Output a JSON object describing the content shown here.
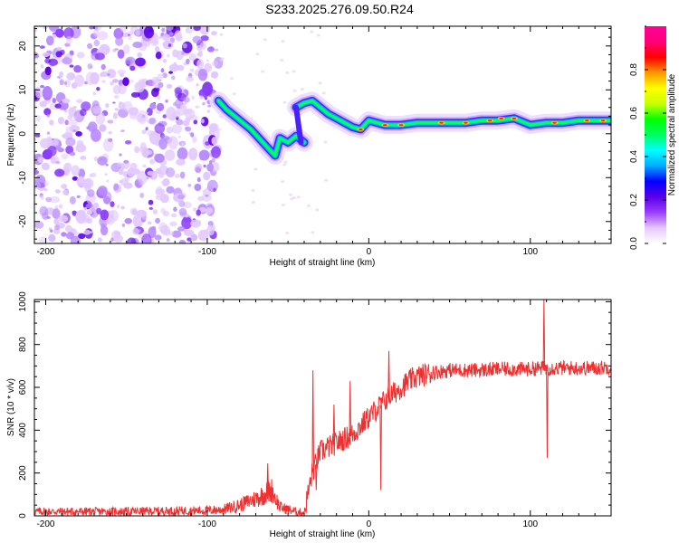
{
  "title": "S233.2025.276.09.50.R24",
  "chart_data": [
    {
      "type": "heatmap",
      "name": "spectrogram",
      "xlabel": "Height of straight line (km)",
      "ylabel": "Frequency (Hz)",
      "xlim": [
        -207,
        150
      ],
      "ylim": [
        -25,
        24.5
      ],
      "xticks": [
        -200,
        -100,
        0,
        100
      ],
      "yticks": [
        -20,
        -10,
        0,
        10,
        20
      ],
      "colorbar": {
        "label": "Normalized spectral amplitude",
        "range": [
          0,
          1
        ],
        "ticks": [
          "0.0",
          "0.2",
          "0.4",
          "0.6",
          "0.8"
        ],
        "colors": [
          "#ffffff",
          "#e6c8ff",
          "#9a3cff",
          "#5a00e6",
          "#0000ff",
          "#00aaff",
          "#00ffff",
          "#00ff60",
          "#00ff00",
          "#c8ff00",
          "#ffff00",
          "#ff9600",
          "#ff0000",
          "#ff0078",
          "#ff0096"
        ]
      },
      "noise_region_x": [
        -207,
        -93
      ],
      "signal_track": [
        {
          "x": -93,
          "f": 7.5
        },
        {
          "x": -88,
          "f": 5.5
        },
        {
          "x": -83,
          "f": 4
        },
        {
          "x": -78,
          "f": 2.5
        },
        {
          "x": -73,
          "f": 1
        },
        {
          "x": -68,
          "f": -1
        },
        {
          "x": -63,
          "f": -3
        },
        {
          "x": -58,
          "f": -5
        },
        {
          "x": -55,
          "f": -1
        },
        {
          "x": -50,
          "f": -2
        },
        {
          "x": -45,
          "f": -0.5
        },
        {
          "x": -40,
          "f": -2
        },
        {
          "x": -45,
          "f": 6
        },
        {
          "x": -40,
          "f": 7
        },
        {
          "x": -35,
          "f": 7.5
        },
        {
          "x": -30,
          "f": 6
        },
        {
          "x": -25,
          "f": 4.5
        },
        {
          "x": -20,
          "f": 3.5
        },
        {
          "x": -15,
          "f": 2.5
        },
        {
          "x": -10,
          "f": 1.5
        },
        {
          "x": -5,
          "f": 1
        },
        {
          "x": 0,
          "f": 3
        },
        {
          "x": 10,
          "f": 2
        },
        {
          "x": 20,
          "f": 2
        },
        {
          "x": 30,
          "f": 2.5
        },
        {
          "x": 40,
          "f": 2.5
        },
        {
          "x": 50,
          "f": 2.5
        },
        {
          "x": 60,
          "f": 2.5
        },
        {
          "x": 70,
          "f": 3
        },
        {
          "x": 80,
          "f": 3
        },
        {
          "x": 90,
          "f": 3.5
        },
        {
          "x": 100,
          "f": 2
        },
        {
          "x": 110,
          "f": 2.5
        },
        {
          "x": 120,
          "f": 2.5
        },
        {
          "x": 130,
          "f": 3
        },
        {
          "x": 140,
          "f": 3
        },
        {
          "x": 150,
          "f": 3
        }
      ]
    },
    {
      "type": "line",
      "name": "snr",
      "xlabel": "Height of straight line (km)",
      "ylabel": "SNR (10 * v/v)",
      "xlim": [
        -207,
        150
      ],
      "ylim": [
        0,
        1010
      ],
      "xticks": [
        -200,
        -100,
        0,
        100
      ],
      "yticks": [
        0,
        200,
        400,
        600,
        800,
        1000
      ],
      "color": "#ee3030",
      "series": [
        {
          "name": "SNR",
          "x": [
            -207,
            -150,
            -100,
            -90,
            -80,
            -70,
            -60,
            -55,
            -45,
            -40,
            -35,
            -30,
            -25,
            -20,
            -15,
            -10,
            -5,
            0,
            5,
            10,
            15,
            20,
            25,
            30,
            40,
            50,
            60,
            70,
            80,
            90,
            100,
            105,
            110,
            115,
            120,
            130,
            140,
            150
          ],
          "y": [
            20,
            20,
            25,
            30,
            50,
            80,
            120,
            40,
            20,
            15,
            200,
            300,
            320,
            340,
            360,
            380,
            420,
            460,
            500,
            540,
            570,
            600,
            630,
            650,
            670,
            680,
            680,
            680,
            685,
            685,
            685,
            690,
            690,
            690,
            690,
            690,
            690,
            695
          ]
        }
      ],
      "spikes": [
        {
          "x": -63,
          "y": 245
        },
        {
          "x": -35,
          "y": 680
        },
        {
          "x": -33,
          "y": 120
        },
        {
          "x": -22,
          "y": 520
        },
        {
          "x": -12,
          "y": 630
        },
        {
          "x": 7,
          "y": 120
        },
        {
          "x": 12,
          "y": 770
        },
        {
          "x": 108,
          "y": 1010
        },
        {
          "x": 110,
          "y": 270
        }
      ]
    }
  ]
}
